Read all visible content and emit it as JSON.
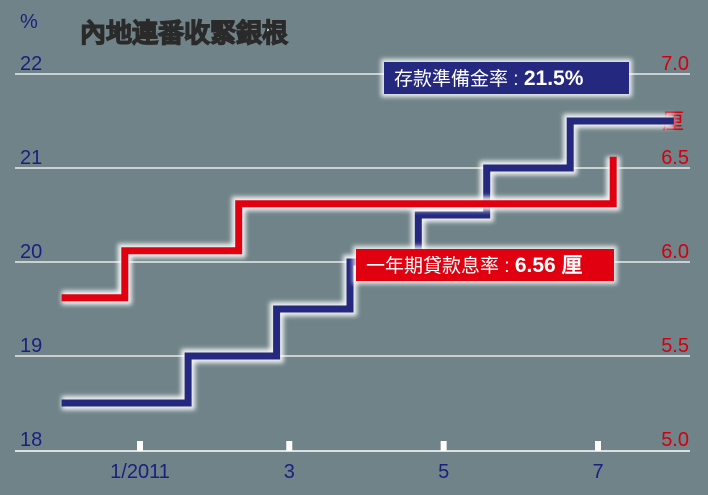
{
  "chart_data": {
    "type": "line",
    "title": "內地連番收緊銀根",
    "x_ticks": [
      "1/2011",
      "3",
      "5",
      "7"
    ],
    "left_axis": {
      "unit": "%",
      "ylim": [
        18,
        22
      ],
      "ticks": [
        "18",
        "19",
        "20",
        "21",
        "22"
      ],
      "color": "#1b1f80"
    },
    "right_axis": {
      "unit": "厘",
      "ylim": [
        5.0,
        7.0
      ],
      "ticks": [
        "5.0",
        "5.5",
        "6.0",
        "6.5",
        "7.0"
      ],
      "color": "#d30010"
    },
    "grid": true,
    "series": [
      {
        "name": "存款準備金率",
        "axis": "left",
        "color": "#24287e",
        "label": "存款準備金率 :",
        "value_label": "21.5%",
        "points": [
          [
            "2010-12-01",
            18.5
          ],
          [
            "2011-01-20",
            18.5
          ],
          [
            "2011-01-20",
            19.0
          ],
          [
            "2011-02-24",
            19.0
          ],
          [
            "2011-02-24",
            19.5
          ],
          [
            "2011-03-25",
            19.5
          ],
          [
            "2011-03-25",
            20.0
          ],
          [
            "2011-04-21",
            20.0
          ],
          [
            "2011-04-21",
            20.5
          ],
          [
            "2011-05-18",
            20.5
          ],
          [
            "2011-05-18",
            21.0
          ],
          [
            "2011-06-20",
            21.0
          ],
          [
            "2011-06-20",
            21.5
          ],
          [
            "2011-07-31",
            21.5
          ]
        ]
      },
      {
        "name": "一年期貸款息率",
        "axis": "right",
        "color": "#e0000f",
        "label": "一年期貸款息率 :",
        "value_label": "6.56 厘",
        "points": [
          [
            "2010-12-01",
            5.81
          ],
          [
            "2010-12-26",
            5.81
          ],
          [
            "2010-12-26",
            6.06
          ],
          [
            "2011-02-09",
            6.06
          ],
          [
            "2011-02-09",
            6.31
          ],
          [
            "2011-04-06",
            6.31
          ],
          [
            "2011-07-07",
            6.31
          ],
          [
            "2011-07-07",
            6.56
          ]
        ]
      }
    ]
  }
}
